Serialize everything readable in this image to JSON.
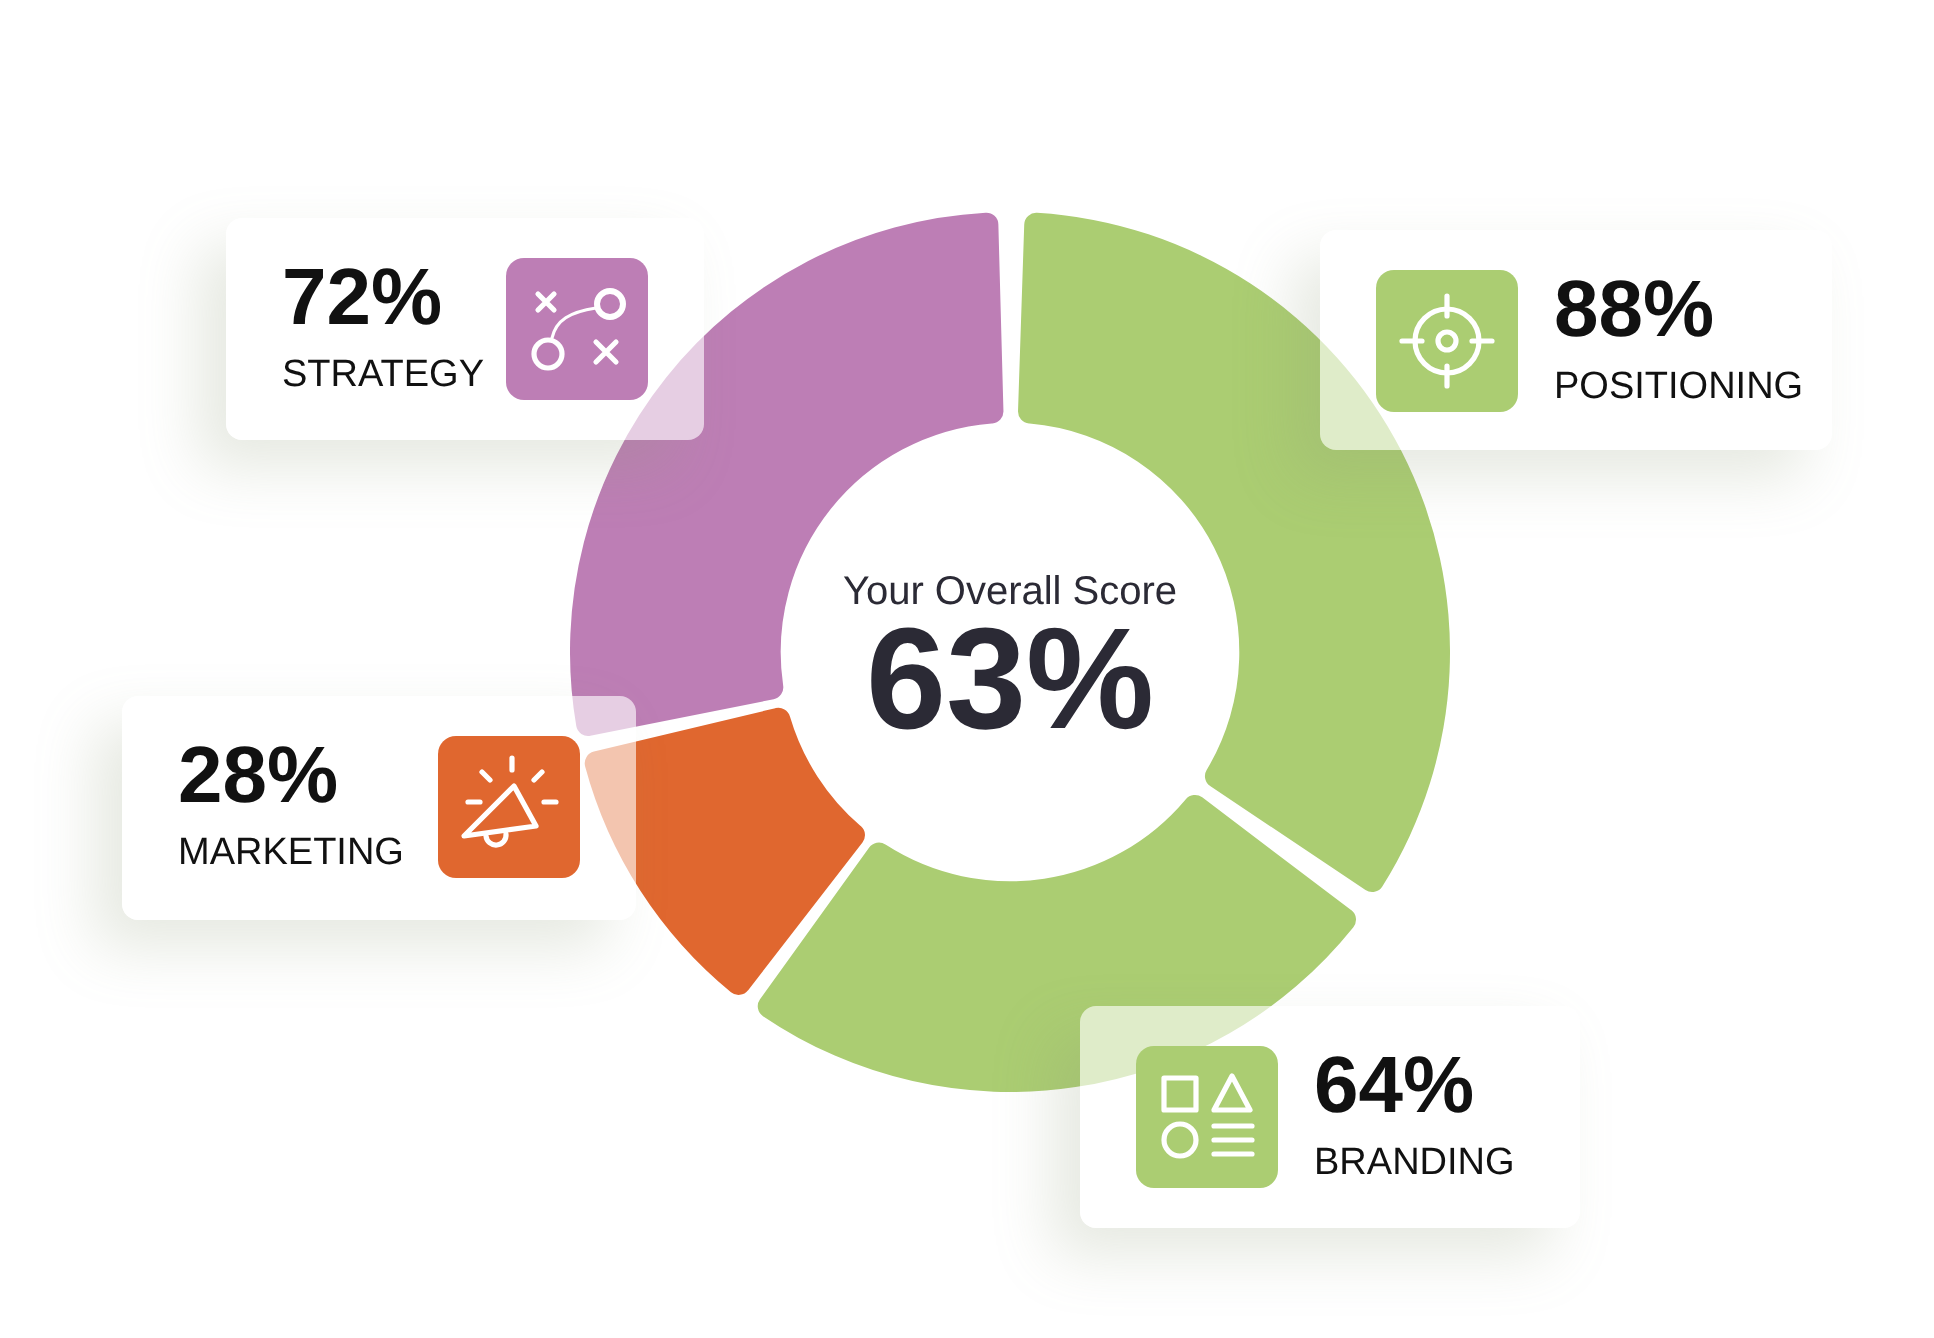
{
  "chart_data": {
    "type": "donut",
    "title": "Your Overall Score",
    "categories": [
      "POSITIONING",
      "BRANDING",
      "MARKETING",
      "STRATEGY"
    ],
    "values": [
      88,
      64,
      28,
      72
    ],
    "colors": [
      "#abcd72",
      "#abcd72",
      "#e0672f",
      "#bd7eb5"
    ],
    "value_labels": [
      "88%",
      "64%",
      "28%",
      "72%"
    ],
    "annotations": [
      "63%"
    ]
  }
}
